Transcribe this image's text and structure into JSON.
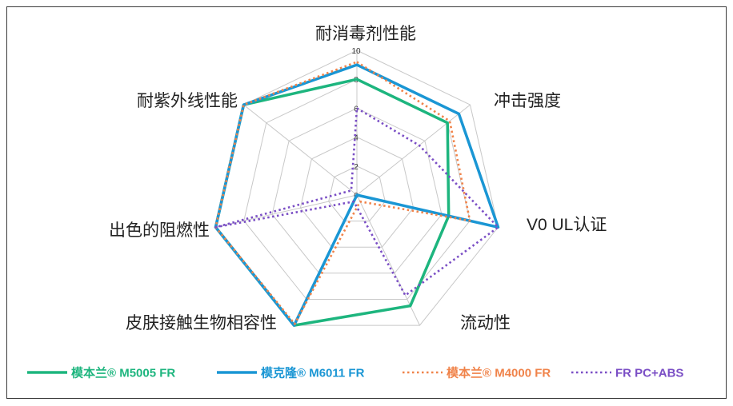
{
  "chart_data": {
    "type": "radar",
    "categories": [
      "耐消毒剂性能",
      "冲击强度",
      "V0 UL认证",
      "流动性",
      "皮肤接触生物相容性",
      "出色的阻燃性",
      "耐紫外线性能"
    ],
    "r_ticks": [
      "0",
      "2",
      "4",
      "6",
      "8",
      "10"
    ],
    "rlim": [
      0,
      10
    ],
    "grid": true,
    "legend_position": "bottom",
    "series": [
      {
        "name": "模本兰® M5005 FR",
        "color": "#1db57e",
        "dash": "solid",
        "values": [
          8,
          8,
          6.5,
          8.5,
          10,
          10,
          10
        ]
      },
      {
        "name": "模克隆® M6011 FR",
        "color": "#1a96d4",
        "dash": "solid",
        "values": [
          9,
          9,
          10,
          0,
          10,
          10,
          10
        ]
      },
      {
        "name": "模本兰® M4000 FR",
        "color": "#f0834a",
        "dash": "dotted",
        "values": [
          9.2,
          8.2,
          8,
          0.5,
          9.9,
          10,
          10
        ]
      },
      {
        "name": "FR PC+ABS",
        "color": "#7a4ec5",
        "dash": "dotted",
        "values": [
          6,
          5.5,
          10,
          7.7,
          0.5,
          10,
          0.5
        ]
      }
    ]
  }
}
